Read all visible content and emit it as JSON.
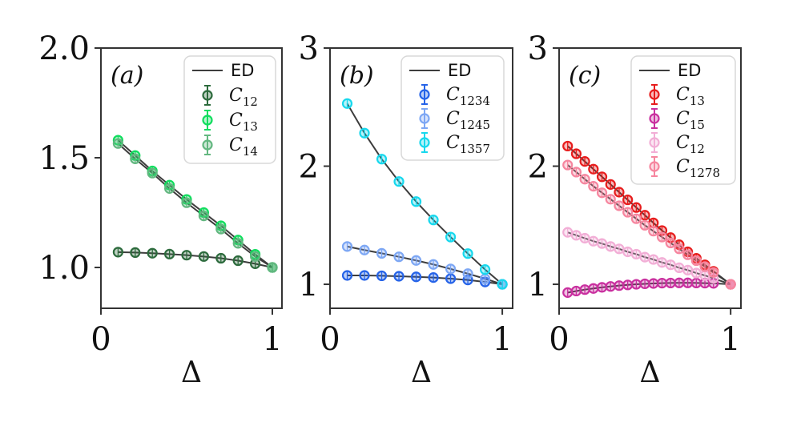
{
  "figure": {
    "background": "#ffffff",
    "axis_color": "#333333",
    "ed_line_color": "#3d3d3d",
    "legend_border_color": "#d8d8d8",
    "legend_background": "#ffffff",
    "ed_label": "ED"
  },
  "chart_data": [
    {
      "type": "line",
      "panel_label": "(a)",
      "xlabel": "Δ",
      "legend_position": "upper right",
      "grid": false,
      "xlim": [
        0,
        1.056
      ],
      "ylim": [
        0.814,
        2.0
      ],
      "xticks": [
        0,
        1
      ],
      "xtick_labels": [
        "0",
        "1"
      ],
      "yticks": [
        1.0,
        1.5,
        2.0
      ],
      "ytick_labels": [
        "1.0",
        "1.5",
        "2.0"
      ],
      "ed_label": "ED",
      "x": [
        0.1,
        0.2,
        0.3,
        0.4,
        0.5,
        0.6,
        0.7,
        0.8,
        0.9,
        1.0
      ],
      "series": [
        {
          "name": "C12",
          "label_base": "C",
          "label_sub": "12",
          "color": "#2d6b3d",
          "values": [
            1.07,
            1.068,
            1.065,
            1.061,
            1.056,
            1.05,
            1.042,
            1.031,
            1.017,
            1.0
          ]
        },
        {
          "name": "C13",
          "label_base": "C",
          "label_sub": "13",
          "color": "#11dd5e",
          "values": [
            1.58,
            1.51,
            1.44,
            1.375,
            1.31,
            1.25,
            1.19,
            1.125,
            1.06,
            1.0
          ]
        },
        {
          "name": "C14",
          "label_base": "C",
          "label_sub": "14",
          "color": "#63b780",
          "values": [
            1.565,
            1.495,
            1.43,
            1.36,
            1.295,
            1.235,
            1.175,
            1.11,
            1.05,
            1.0
          ]
        }
      ]
    },
    {
      "type": "line",
      "panel_label": "(b)",
      "xlabel": "Δ",
      "legend_position": "upper right",
      "grid": false,
      "xlim": [
        0,
        1.06
      ],
      "ylim": [
        0.797,
        3.0
      ],
      "xticks": [
        0,
        1
      ],
      "xtick_labels": [
        "0",
        "1"
      ],
      "yticks": [
        1,
        2,
        3
      ],
      "ytick_labels": [
        "1",
        "2",
        "3"
      ],
      "ed_label": "ED",
      "x": [
        0.1,
        0.2,
        0.3,
        0.4,
        0.5,
        0.6,
        0.7,
        0.8,
        0.9,
        1.0
      ],
      "series": [
        {
          "name": "C1234",
          "label_base": "C",
          "label_sub": "1234",
          "color": "#2563e8",
          "values": [
            1.075,
            1.075,
            1.072,
            1.068,
            1.063,
            1.057,
            1.048,
            1.037,
            1.02,
            1.0
          ]
        },
        {
          "name": "C1245",
          "label_base": "C",
          "label_sub": "1245",
          "color": "#7da7f4",
          "values": [
            1.32,
            1.29,
            1.262,
            1.233,
            1.202,
            1.168,
            1.13,
            1.09,
            1.047,
            1.0
          ]
        },
        {
          "name": "C1357",
          "label_base": "C",
          "label_sub": "1357",
          "color": "#17d8ed",
          "values": [
            2.53,
            2.28,
            2.06,
            1.87,
            1.7,
            1.545,
            1.4,
            1.26,
            1.125,
            1.0
          ]
        }
      ]
    },
    {
      "type": "line",
      "panel_label": "(c)",
      "xlabel": "Δ",
      "legend_position": "upper right",
      "grid": false,
      "xlim": [
        0,
        1.06
      ],
      "ylim": [
        0.797,
        3.0
      ],
      "xticks": [
        0,
        1
      ],
      "xtick_labels": [
        "0",
        "1"
      ],
      "yticks": [
        1,
        2,
        3
      ],
      "ytick_labels": [
        "1",
        "2",
        "3"
      ],
      "ed_label": "ED",
      "x": [
        0.05,
        0.1,
        0.15,
        0.2,
        0.25,
        0.3,
        0.35,
        0.4,
        0.45,
        0.5,
        0.55,
        0.6,
        0.65,
        0.7,
        0.75,
        0.8,
        0.85,
        0.9,
        1.0
      ],
      "series": [
        {
          "name": "C13",
          "label_base": "C",
          "label_sub": "13",
          "color": "#e71d1d",
          "values": [
            2.17,
            2.105,
            2.04,
            1.975,
            1.91,
            1.845,
            1.78,
            1.715,
            1.65,
            1.585,
            1.52,
            1.455,
            1.395,
            1.335,
            1.275,
            1.22,
            1.165,
            1.11,
            1.0
          ]
        },
        {
          "name": "C15",
          "label_base": "C",
          "label_sub": "15",
          "color": "#c9309f",
          "values": [
            0.93,
            0.943,
            0.955,
            0.965,
            0.974,
            0.982,
            0.989,
            0.995,
            1.0,
            1.004,
            1.007,
            1.01,
            1.011,
            1.012,
            1.012,
            1.011,
            1.01,
            1.008,
            1.0
          ]
        },
        {
          "name": "C12",
          "label_base": "C",
          "label_sub": "12",
          "color": "#f2aed6",
          "values": [
            1.44,
            1.415,
            1.39,
            1.365,
            1.345,
            1.32,
            1.3,
            1.275,
            1.255,
            1.23,
            1.21,
            1.185,
            1.165,
            1.14,
            1.12,
            1.095,
            1.075,
            1.05,
            1.0
          ]
        },
        {
          "name": "C1278",
          "label_base": "C",
          "label_sub": "1278",
          "color": "#f6869f",
          "values": [
            2.01,
            1.95,
            1.89,
            1.83,
            1.775,
            1.72,
            1.665,
            1.61,
            1.555,
            1.5,
            1.45,
            1.4,
            1.35,
            1.3,
            1.25,
            1.2,
            1.15,
            1.1,
            1.0
          ]
        }
      ]
    }
  ]
}
